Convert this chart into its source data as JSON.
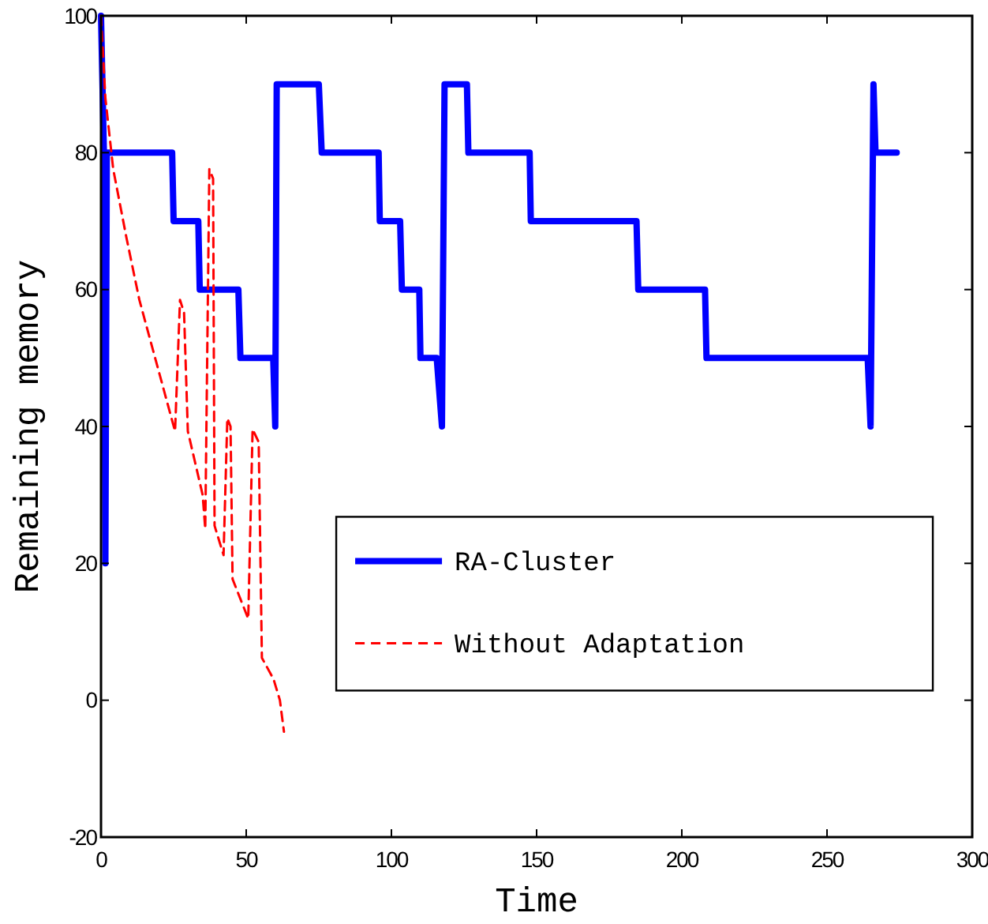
{
  "chart_data": {
    "type": "line",
    "xlabel": "Time",
    "ylabel": "Remaining memory",
    "xlim": [
      0,
      300
    ],
    "ylim": [
      -20,
      100
    ],
    "xticks": [
      0,
      50,
      100,
      150,
      200,
      250,
      300
    ],
    "yticks": [
      -20,
      0,
      20,
      40,
      60,
      80,
      100
    ],
    "grid": false,
    "legend": "bottom right",
    "series": [
      {
        "name": "RA-Cluster",
        "color": "#0000ff",
        "line_style": "solid",
        "x": [
          0,
          1,
          1.5,
          2,
          24.5,
          25,
          33.5,
          34,
          47.3,
          48,
          59.3,
          60,
          60.5,
          75,
          76,
          95.6,
          96,
          103,
          103.6,
          109.6,
          110,
          115.6,
          117.4,
          118.3,
          126,
          126.5,
          147.6,
          148,
          184.4,
          185,
          208,
          208.5,
          264,
          265,
          266,
          266.7,
          274
        ],
        "values": [
          100,
          80,
          20,
          80,
          80,
          70,
          70,
          60,
          60,
          50,
          50,
          40,
          90,
          90,
          80,
          80,
          70,
          70,
          60,
          60,
          50,
          50,
          40,
          90,
          90,
          80,
          80,
          70,
          70,
          60,
          60,
          50,
          50,
          40,
          90,
          80,
          80
        ]
      },
      {
        "name": "Without Adaptation",
        "color": "#ff0000",
        "line_style": "dashed",
        "x": [
          0,
          1.5,
          4.2,
          8.7,
          13.2,
          19.6,
          25.5,
          27.2,
          28.6,
          29.9,
          35,
          35.9,
          37.3,
          38.6,
          39.1,
          42.2,
          43.5,
          44.6,
          45.3,
          50.7,
          52.2,
          54.3,
          55.4,
          59.4,
          61.6,
          63
        ],
        "values": [
          100,
          88,
          77.6,
          67.7,
          58.5,
          48.5,
          39.3,
          58.5,
          56.6,
          39.3,
          30,
          25,
          77.6,
          76.2,
          25.5,
          21.2,
          41.2,
          40,
          17.7,
          11.9,
          39.6,
          37.7,
          6.2,
          3.1,
          0,
          -4.6
        ]
      }
    ]
  }
}
